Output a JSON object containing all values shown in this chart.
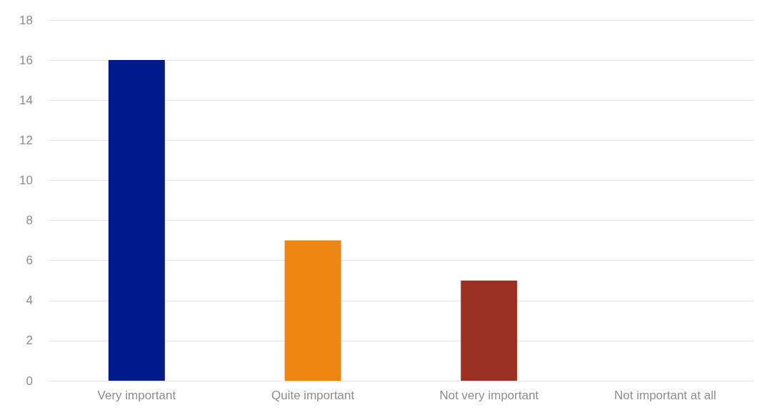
{
  "chart_data": {
    "type": "bar",
    "categories": [
      "Very important",
      "Quite important",
      "Not very important",
      "Not important at all"
    ],
    "values": [
      16,
      7,
      5,
      0
    ],
    "colors": [
      "#001a8c",
      "#ee8612",
      "#9a3022",
      "#7f7f7f"
    ],
    "ylim": [
      0,
      18
    ],
    "yticks": [
      0,
      2,
      4,
      6,
      8,
      10,
      12,
      14,
      16,
      18
    ],
    "grid": "y"
  }
}
